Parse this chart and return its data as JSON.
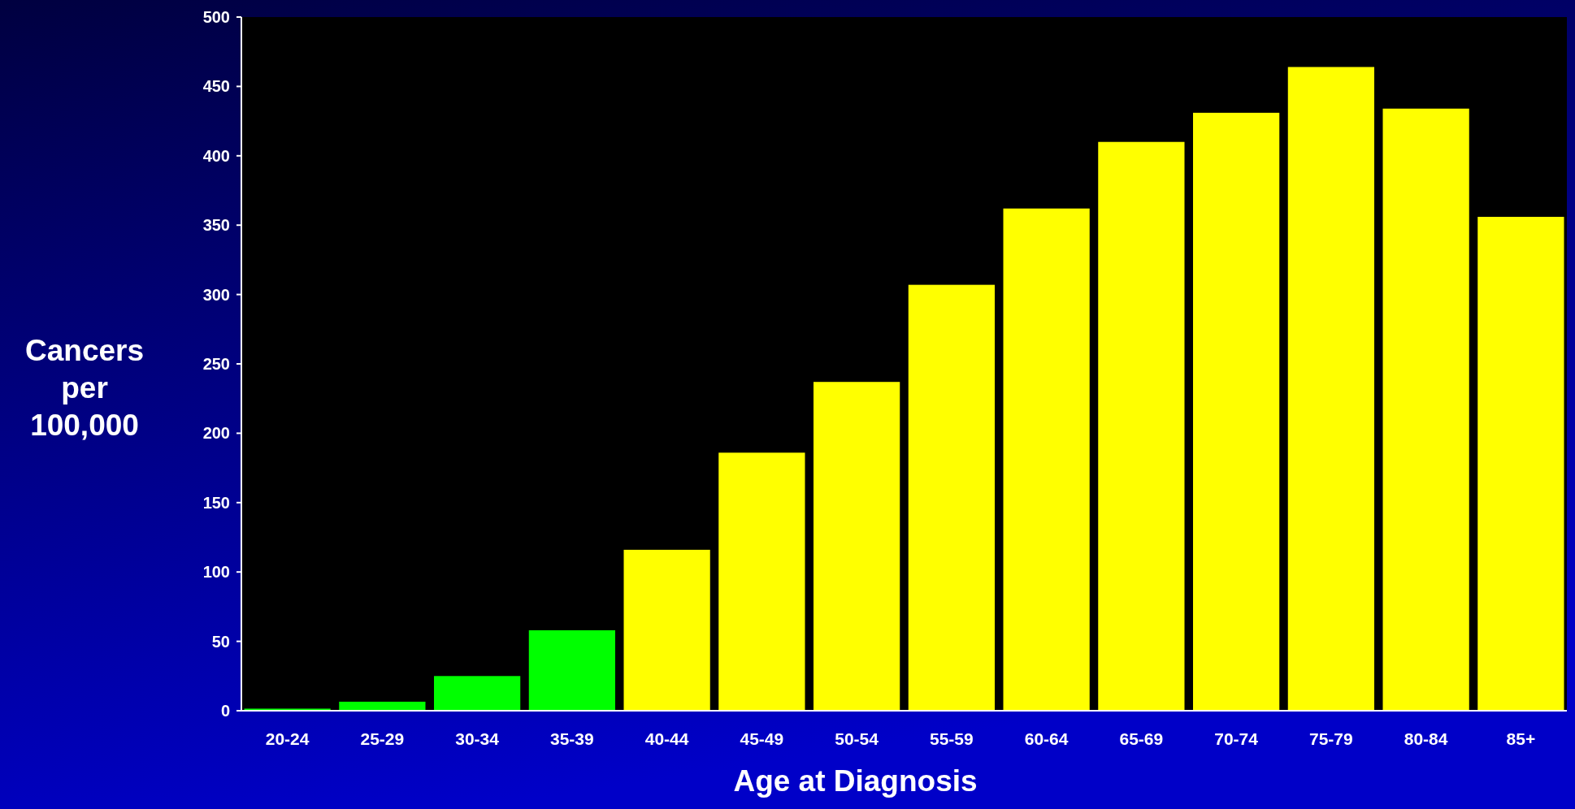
{
  "chart_data": {
    "type": "bar",
    "xlabel": "Age at Diagnosis",
    "ylabel": "Cancers per 100,000",
    "categories": [
      "20-24",
      "25-29",
      "30-34",
      "35-39",
      "40-44",
      "45-49",
      "50-54",
      "55-59",
      "60-64",
      "65-69",
      "70-74",
      "75-79",
      "80-84",
      "85+"
    ],
    "values": [
      1.5,
      6.5,
      25,
      58,
      116,
      186,
      237,
      307,
      362,
      410,
      431,
      464,
      434,
      356
    ],
    "colors": [
      "#00ff00",
      "#00ff00",
      "#00ff00",
      "#00ff00",
      "#ffff00",
      "#ffff00",
      "#ffff00",
      "#ffff00",
      "#ffff00",
      "#ffff00",
      "#ffff00",
      "#ffff00",
      "#ffff00",
      "#ffff00"
    ],
    "ylim": [
      0,
      500
    ],
    "yticks": [
      0,
      50,
      100,
      150,
      200,
      250,
      300,
      350,
      400,
      450,
      500
    ],
    "grid": false
  }
}
